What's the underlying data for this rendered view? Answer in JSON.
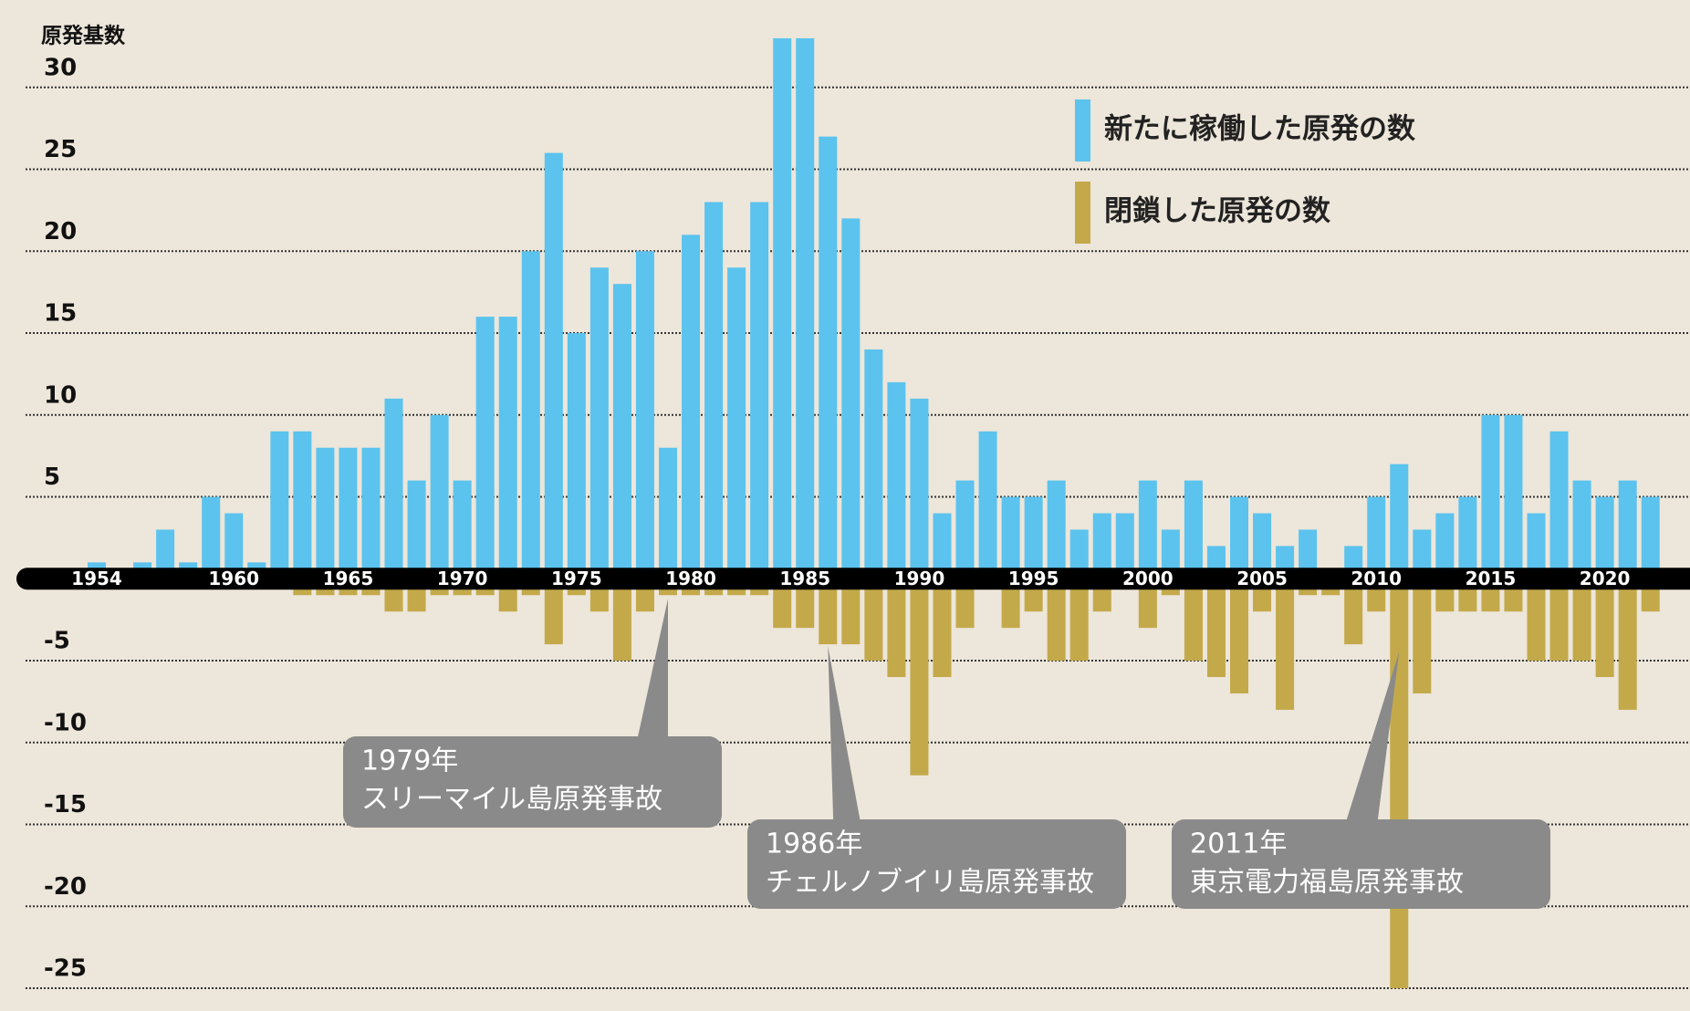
{
  "chart_data": {
    "type": "bar",
    "y_axis_label": "原発基数",
    "categories": [
      "1954",
      null,
      null,
      null,
      null,
      null,
      "1960",
      null,
      null,
      null,
      null,
      "1965",
      null,
      null,
      null,
      null,
      "1970",
      null,
      null,
      null,
      null,
      "1975",
      null,
      null,
      null,
      null,
      "1980",
      null,
      null,
      null,
      null,
      "1985",
      null,
      null,
      null,
      null,
      "1990",
      null,
      null,
      null,
      null,
      "1995",
      null,
      null,
      null,
      null,
      "2000",
      null,
      null,
      null,
      null,
      "2005",
      null,
      null,
      null,
      null,
      "2010",
      null,
      null,
      null,
      null,
      "2015",
      null,
      null,
      null,
      null,
      "2020",
      null,
      null
    ],
    "series": [
      {
        "name": "新たに稼働した原発の数",
        "color": "#5bc3ee",
        "values": [
          1,
          0,
          1,
          3,
          1,
          5,
          4,
          1,
          9,
          9,
          8,
          8,
          8,
          11,
          6,
          10,
          6,
          16,
          16,
          20,
          26,
          15,
          19,
          18,
          20,
          8,
          21,
          23,
          19,
          23,
          33,
          33,
          27,
          22,
          14,
          12,
          11,
          4,
          6,
          9,
          5,
          5,
          6,
          3,
          4,
          4,
          6,
          3,
          6,
          2,
          5,
          4,
          2,
          3,
          0,
          2,
          5,
          7,
          3,
          4,
          5,
          10,
          10,
          4,
          9,
          6,
          5,
          6,
          5
        ]
      },
      {
        "name": "閉鎖した原発の数",
        "color": "#c3a94a",
        "values": [
          0,
          0,
          0,
          0,
          0,
          0,
          0,
          0,
          0,
          -1,
          -1,
          -1,
          -1,
          -2,
          -2,
          -1,
          -1,
          -1,
          -2,
          -1,
          -4,
          -1,
          -2,
          -5,
          -2,
          -1,
          -1,
          -1,
          -1,
          -1,
          -3,
          -3,
          -4,
          -4,
          -5,
          -6,
          -12,
          -6,
          -3,
          0,
          -3,
          -2,
          -5,
          -5,
          -2,
          0,
          -3,
          -1,
          -5,
          -6,
          -7,
          -2,
          -8,
          -1,
          -1,
          -4,
          -2,
          -25,
          -7,
          -2,
          -2,
          -2,
          -2,
          -5,
          -5,
          -5,
          -6,
          -8,
          -2
        ]
      }
    ],
    "ylim": [
      -26,
      34
    ],
    "yticks": [
      -25,
      -20,
      -15,
      -10,
      -5,
      5,
      10,
      15,
      20,
      25,
      30
    ],
    "grid": true,
    "legend": "top-right",
    "annotations": [
      {
        "x": 1979,
        "lines": [
          "1979年",
          "スリーマイル島原発事故"
        ]
      },
      {
        "x": 1986,
        "lines": [
          "1986年",
          "チェルノブイリ島原発事故"
        ]
      },
      {
        "x": 2011,
        "lines": [
          "2011年",
          "東京電力福島原発事故"
        ]
      }
    ]
  }
}
